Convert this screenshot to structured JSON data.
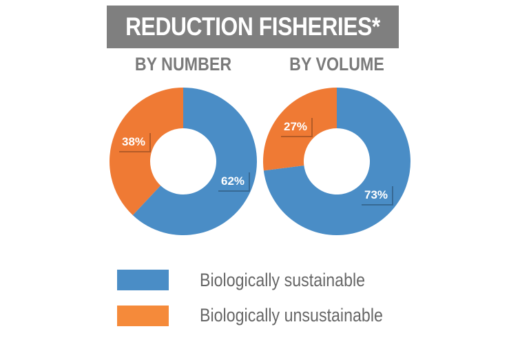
{
  "title": "REDUCTION FISHERIES*",
  "colors": {
    "sustainable": "#4a8dc6",
    "unsustainable": "#ef7a34",
    "legend_unsustainable": "#f58a3a",
    "label_bg": "#4a8dc6"
  },
  "chart_data": [
    {
      "type": "pie",
      "title": "BY NUMBER",
      "slices": [
        {
          "label": "Biologically sustainable",
          "value": 62,
          "display": "62%"
        },
        {
          "label": "Biologically unsustainable",
          "value": 38,
          "display": "38%"
        }
      ]
    },
    {
      "type": "pie",
      "title": "BY VOLUME",
      "slices": [
        {
          "label": "Biologically sustainable",
          "value": 73,
          "display": "73%"
        },
        {
          "label": "Biologically unsustainable",
          "value": 27,
          "display": "27%"
        }
      ]
    }
  ],
  "legend": [
    {
      "label": "Biologically sustainable"
    },
    {
      "label": "Biologically unsustainable"
    }
  ]
}
